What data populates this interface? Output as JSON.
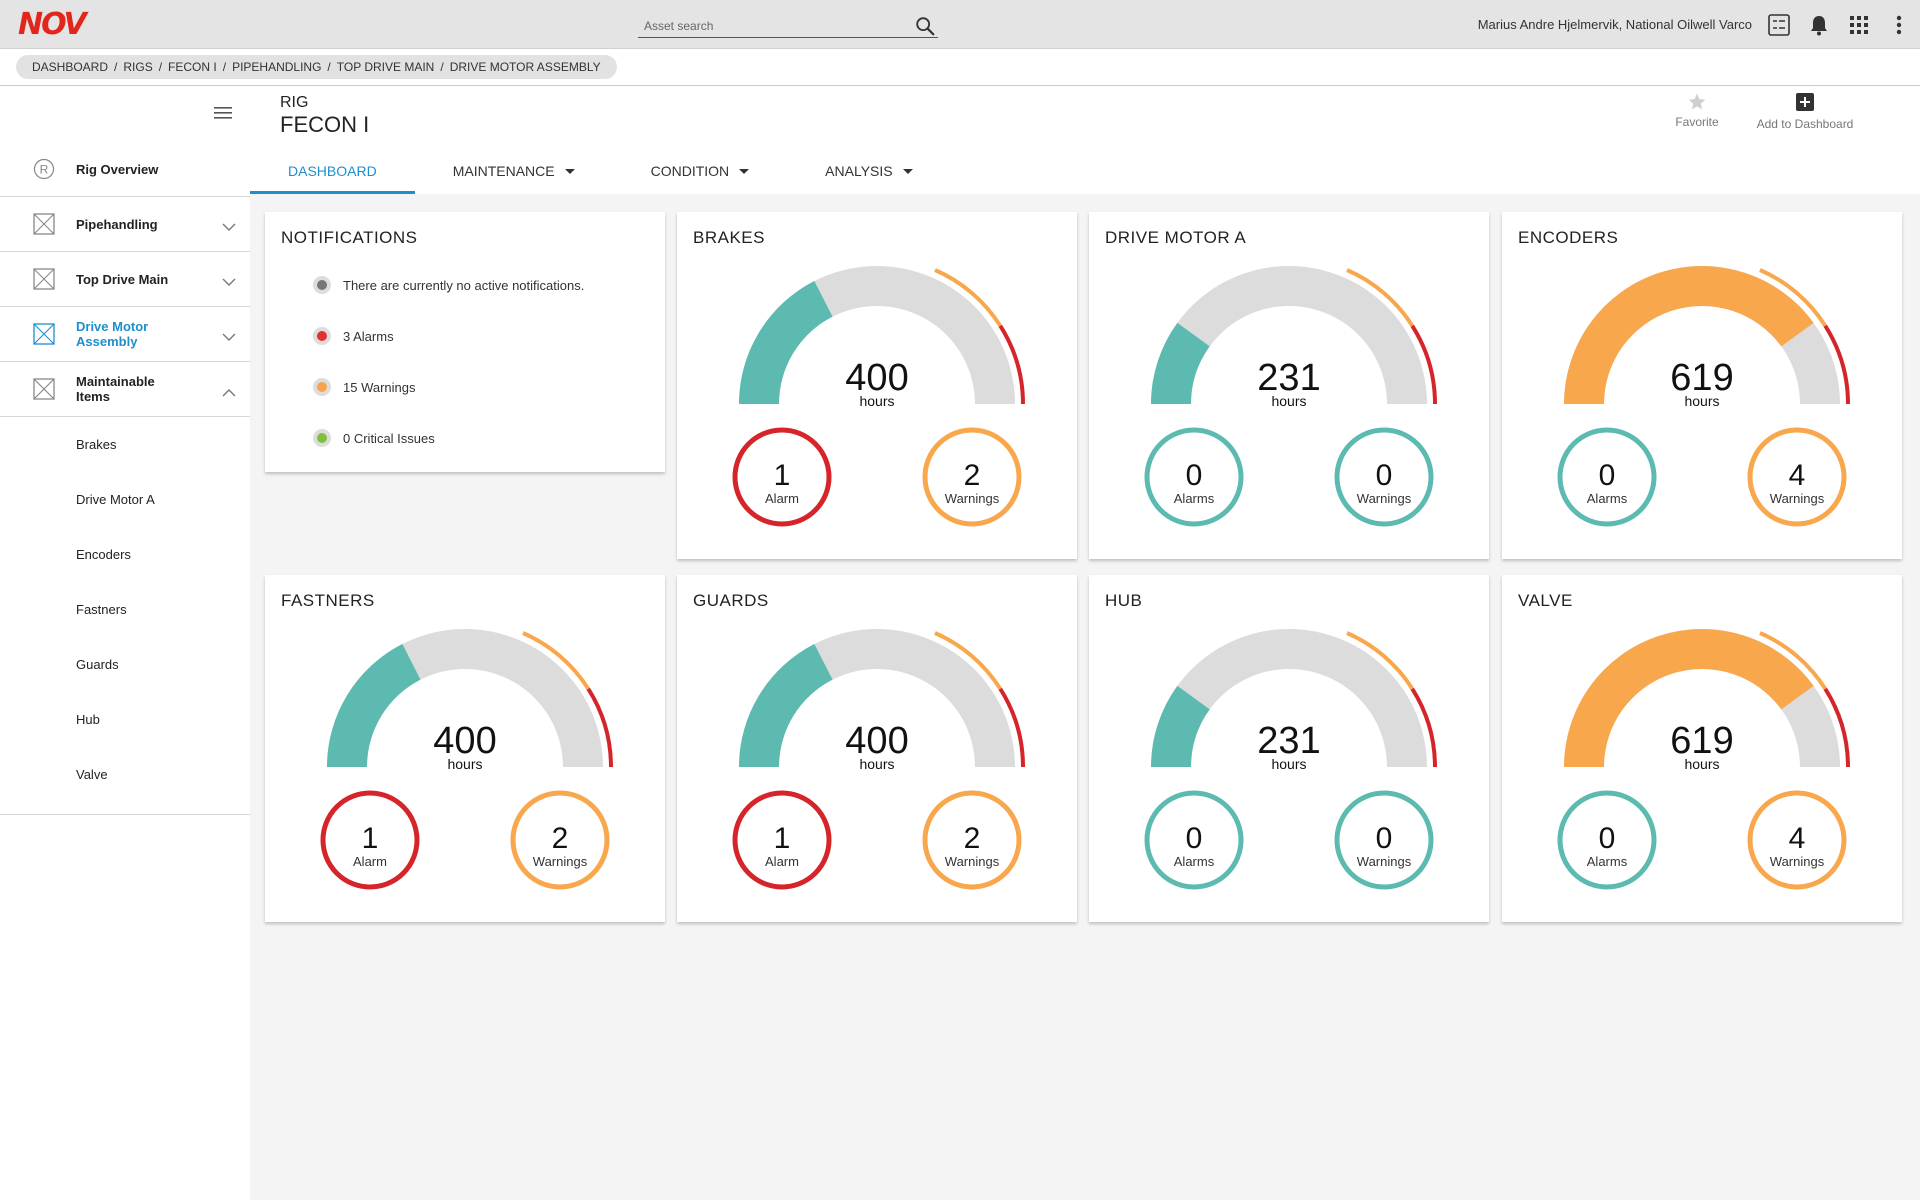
{
  "header": {
    "logo": "NOV",
    "search_placeholder": "Asset search",
    "user": "Marius Andre Hjelmervik, National Oilwell Varco"
  },
  "breadcrumb": [
    "DASHBOARD",
    "RIGS",
    "FECON I",
    "PIPEHANDLING",
    "TOP DRIVE MAIN",
    "DRIVE MOTOR ASSEMBLY"
  ],
  "page": {
    "label": "RIG",
    "name": "FECON I",
    "favorite_label": "Favorite",
    "add_label": "Add to Dashboard"
  },
  "tabs": [
    {
      "label": "DASHBOARD",
      "active": true,
      "dropdown": false
    },
    {
      "label": "MAINTENANCE",
      "active": false,
      "dropdown": true
    },
    {
      "label": "CONDITION",
      "active": false,
      "dropdown": true
    },
    {
      "label": "ANALYSIS",
      "active": false,
      "dropdown": true
    }
  ],
  "sidebar": {
    "items": [
      {
        "label": "Rig Overview",
        "icon": "r-circle-icon",
        "chevron": "none"
      },
      {
        "label": "Pipehandling",
        "icon": "asset-box-icon",
        "chevron": "down"
      },
      {
        "label": "Top Drive Main",
        "icon": "asset-box-icon",
        "chevron": "down"
      },
      {
        "label": "Drive Motor Assembly",
        "icon": "asset-box-icon",
        "chevron": "down",
        "active": true
      },
      {
        "label": "Maintainable Items",
        "icon": "asset-box-icon",
        "chevron": "up"
      }
    ],
    "sub_items": [
      "Brakes",
      "Drive Motor A",
      "Encoders",
      "Fastners",
      "Guards",
      "Hub",
      "Valve"
    ]
  },
  "notifications": {
    "title": "NOTIFICATIONS",
    "rows": [
      {
        "text": "There are currently no active notifications.",
        "color": "#777777"
      },
      {
        "text": "3 Alarms",
        "color": "#e03030"
      },
      {
        "text": "15 Warnings",
        "color": "#f7a44a"
      },
      {
        "text": "0 Critical Issues",
        "color": "#7cc13c"
      }
    ]
  },
  "colors": {
    "teal": "#5cbab0",
    "orange": "#f8a74c",
    "red": "#d6252a",
    "gauge_bg": "#dcdcdc",
    "accent": "#1d8fcf"
  },
  "cards": [
    {
      "title": "BRAKES",
      "hours": "400",
      "unit": "hours",
      "fraction": 0.35,
      "fill_color": "teal",
      "alarm": {
        "count": "1",
        "label": "Alarm",
        "color": "red"
      },
      "warning": {
        "count": "2",
        "label": "Warnings",
        "color": "orange"
      }
    },
    {
      "title": "DRIVE MOTOR A",
      "hours": "231",
      "unit": "hours",
      "fraction": 0.2,
      "fill_color": "teal",
      "alarm": {
        "count": "0",
        "label": "Alarms",
        "color": "teal"
      },
      "warning": {
        "count": "0",
        "label": "Warnings",
        "color": "teal"
      }
    },
    {
      "title": "ENCODERS",
      "hours": "619",
      "unit": "hours",
      "fraction": 0.8,
      "fill_color": "orange",
      "alarm": {
        "count": "0",
        "label": "Alarms",
        "color": "teal"
      },
      "warning": {
        "count": "4",
        "label": "Warnings",
        "color": "orange"
      }
    },
    {
      "title": "FASTNERS",
      "hours": "400",
      "unit": "hours",
      "fraction": 0.35,
      "fill_color": "teal",
      "alarm": {
        "count": "1",
        "label": "Alarm",
        "color": "red"
      },
      "warning": {
        "count": "2",
        "label": "Warnings",
        "color": "orange"
      }
    },
    {
      "title": "GUARDS",
      "hours": "400",
      "unit": "hours",
      "fraction": 0.35,
      "fill_color": "teal",
      "alarm": {
        "count": "1",
        "label": "Alarm",
        "color": "red"
      },
      "warning": {
        "count": "2",
        "label": "Warnings",
        "color": "orange"
      }
    },
    {
      "title": "HUB",
      "hours": "231",
      "unit": "hours",
      "fraction": 0.2,
      "fill_color": "teal",
      "alarm": {
        "count": "0",
        "label": "Alarms",
        "color": "teal"
      },
      "warning": {
        "count": "0",
        "label": "Warnings",
        "color": "teal"
      }
    },
    {
      "title": "VALVE",
      "hours": "619",
      "unit": "hours",
      "fraction": 0.8,
      "fill_color": "orange",
      "alarm": {
        "count": "0",
        "label": "Alarms",
        "color": "teal"
      },
      "warning": {
        "count": "4",
        "label": "Warnings",
        "color": "orange"
      }
    }
  ]
}
